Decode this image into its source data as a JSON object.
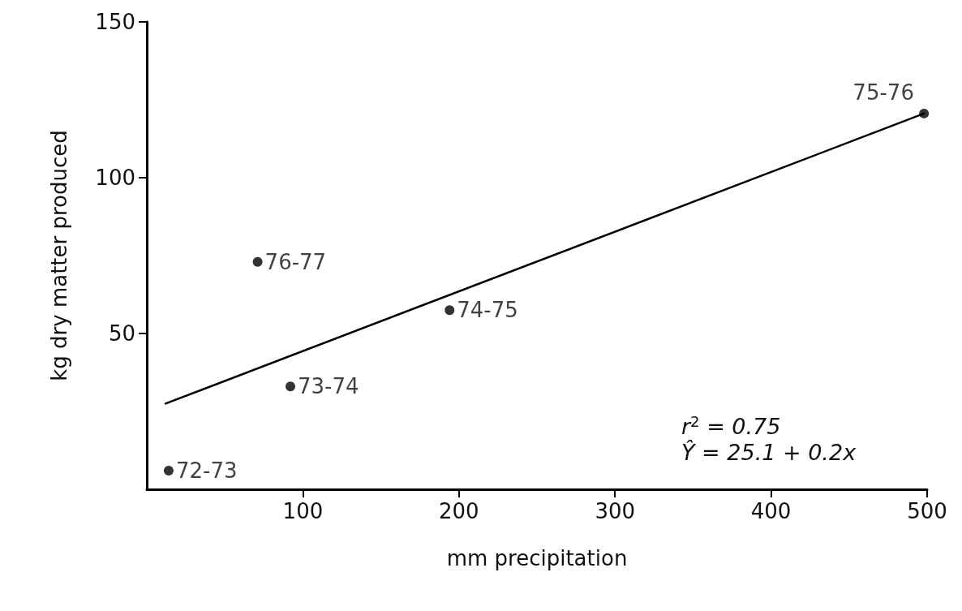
{
  "chart_data": {
    "type": "scatter",
    "xlabel": "mm precipitation",
    "ylabel": "kg dry matter produced",
    "xlim": [
      0,
      500
    ],
    "xticks": [
      100,
      200,
      300,
      400,
      500
    ],
    "ylim": [
      0,
      150
    ],
    "yticks": [
      50,
      100,
      150
    ],
    "grid": false,
    "marker": "circle",
    "series": [
      {
        "color": "#000000",
        "x": [
          14,
          71,
          92,
          194,
          498
        ],
        "values": [
          6,
          73,
          33,
          57.5,
          120.6
        ]
      },
      {
        "type": "line",
        "color": "#000000",
        "marker": "none",
        "line_style": "solid",
        "x": [
          12,
          498
        ],
        "values": [
          27.5,
          120.6
        ]
      }
    ],
    "annotations": [
      {
        "text": "72-73",
        "x": 14,
        "y": 6
      },
      {
        "text": "76-77",
        "x": 71,
        "y": 73
      },
      {
        "text": "73-74",
        "x": 92,
        "y": 33
      },
      {
        "text": "74-75",
        "x": 194,
        "y": 57.5
      },
      {
        "text": "75-76",
        "x": 498,
        "y": 120.6
      },
      "r$^{2}$ = 0.75",
      "Ŷ = 25.1 + 0.2x"
    ]
  }
}
